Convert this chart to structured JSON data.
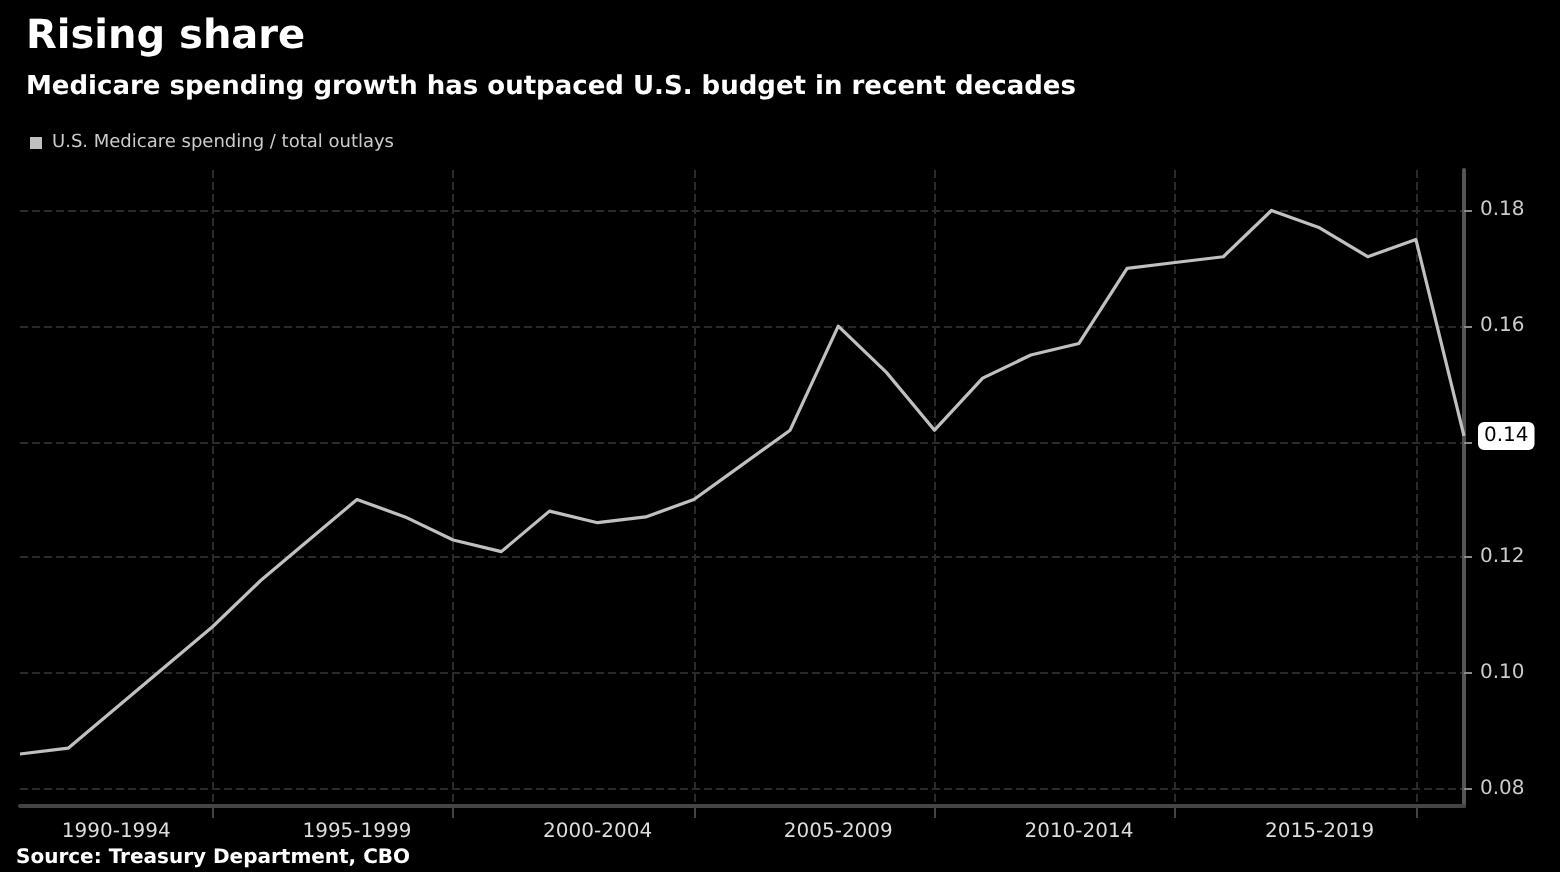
{
  "chart_data": {
    "type": "line",
    "title": "Rising share",
    "subtitle": "Medicare spending growth has outpaced U.S. budget in recent decades",
    "categories": [
      null,
      null,
      "1990-1994",
      null,
      null,
      null,
      null,
      "1995-1999",
      null,
      null,
      null,
      null,
      "2000-2004",
      null,
      null,
      null,
      null,
      "2005-2009",
      null,
      null,
      null,
      null,
      "2010-2014",
      null,
      null,
      null,
      null,
      "2015-2019",
      null,
      null,
      null
    ],
    "series": [
      {
        "name": "U.S. Medicare spending / total outlays",
        "color": "#c0c0c0",
        "values": [
          0.086,
          0.087,
          0.094,
          0.101,
          0.108,
          0.116,
          0.123,
          0.13,
          0.127,
          0.123,
          0.121,
          0.128,
          0.126,
          0.127,
          0.13,
          0.136,
          0.142,
          0.16,
          0.152,
          0.142,
          0.151,
          0.155,
          0.157,
          0.17,
          0.171,
          0.172,
          0.18,
          0.177,
          0.172,
          0.175,
          0.141
        ],
        "value_labels": [
          null,
          null,
          null,
          null,
          null,
          null,
          null,
          null,
          null,
          null,
          null,
          null,
          null,
          null,
          null,
          null,
          null,
          null,
          null,
          null,
          null,
          null,
          null,
          null,
          null,
          null,
          null,
          null,
          null,
          null,
          "0.14"
        ]
      }
    ],
    "ylim": [
      0.077,
      0.187
    ],
    "yticks": [
      {
        "value": 0.08,
        "label": "0.08"
      },
      {
        "value": 0.1,
        "label": "0.10"
      },
      {
        "value": 0.12,
        "label": "0.12"
      },
      {
        "value": 0.14,
        "label": null
      },
      {
        "value": 0.16,
        "label": "0.16"
      },
      {
        "value": 0.18,
        "label": "0.18"
      }
    ],
    "grid": true,
    "legend": "top left",
    "marker": "none",
    "line_style": "solid",
    "annotations": [
      "Source: Treasury Department, CBO"
    ]
  }
}
